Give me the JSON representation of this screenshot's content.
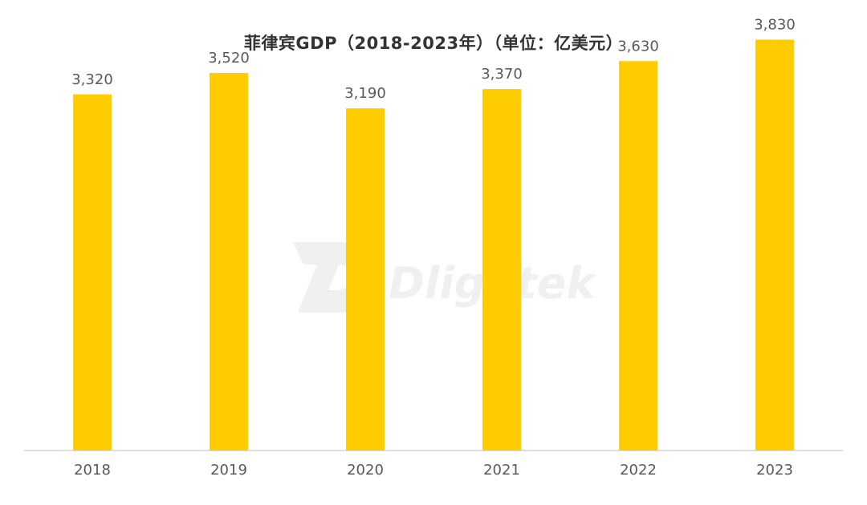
{
  "chart_data": {
    "type": "bar",
    "title": "菲律宾GDP（2018-2023年）（单位：亿美元）",
    "categories": [
      "2018",
      "2019",
      "2020",
      "2021",
      "2022",
      "2023"
    ],
    "values": [
      3320,
      3520,
      3190,
      3370,
      3630,
      3830
    ],
    "value_labels": [
      "3,320",
      "3,520",
      "3,190",
      "3,370",
      "3,630",
      "3,830"
    ],
    "xlabel": "",
    "ylabel": "",
    "ylim": [
      0,
      4200
    ],
    "grid": false,
    "legend": "none",
    "colors": {
      "bar": "#FFCC00",
      "axis": "#BFBFBF",
      "label": "#595959"
    }
  },
  "watermark": {
    "text": "Dlightek"
  }
}
